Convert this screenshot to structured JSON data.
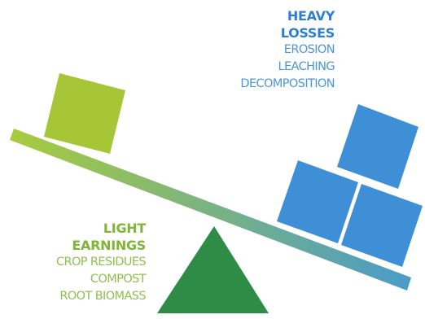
{
  "losses": {
    "heading_line1": "HEAVY",
    "heading_line2": "LOSSES",
    "items": [
      "EROSION",
      "LEACHING",
      "DECOMPOSITION"
    ]
  },
  "earnings": {
    "heading_line1": "LIGHT",
    "heading_line2": "EARNINGS",
    "items": [
      "CROP RESIDUES",
      "COMPOST",
      "ROOT BIOMASS"
    ]
  },
  "colors": {
    "light_green": "#a6c637",
    "dark_green": "#2f8c46",
    "blue": "#3f8fd6",
    "beam_left": "#a9cb3c",
    "beam_right": "#4a9bc9"
  }
}
